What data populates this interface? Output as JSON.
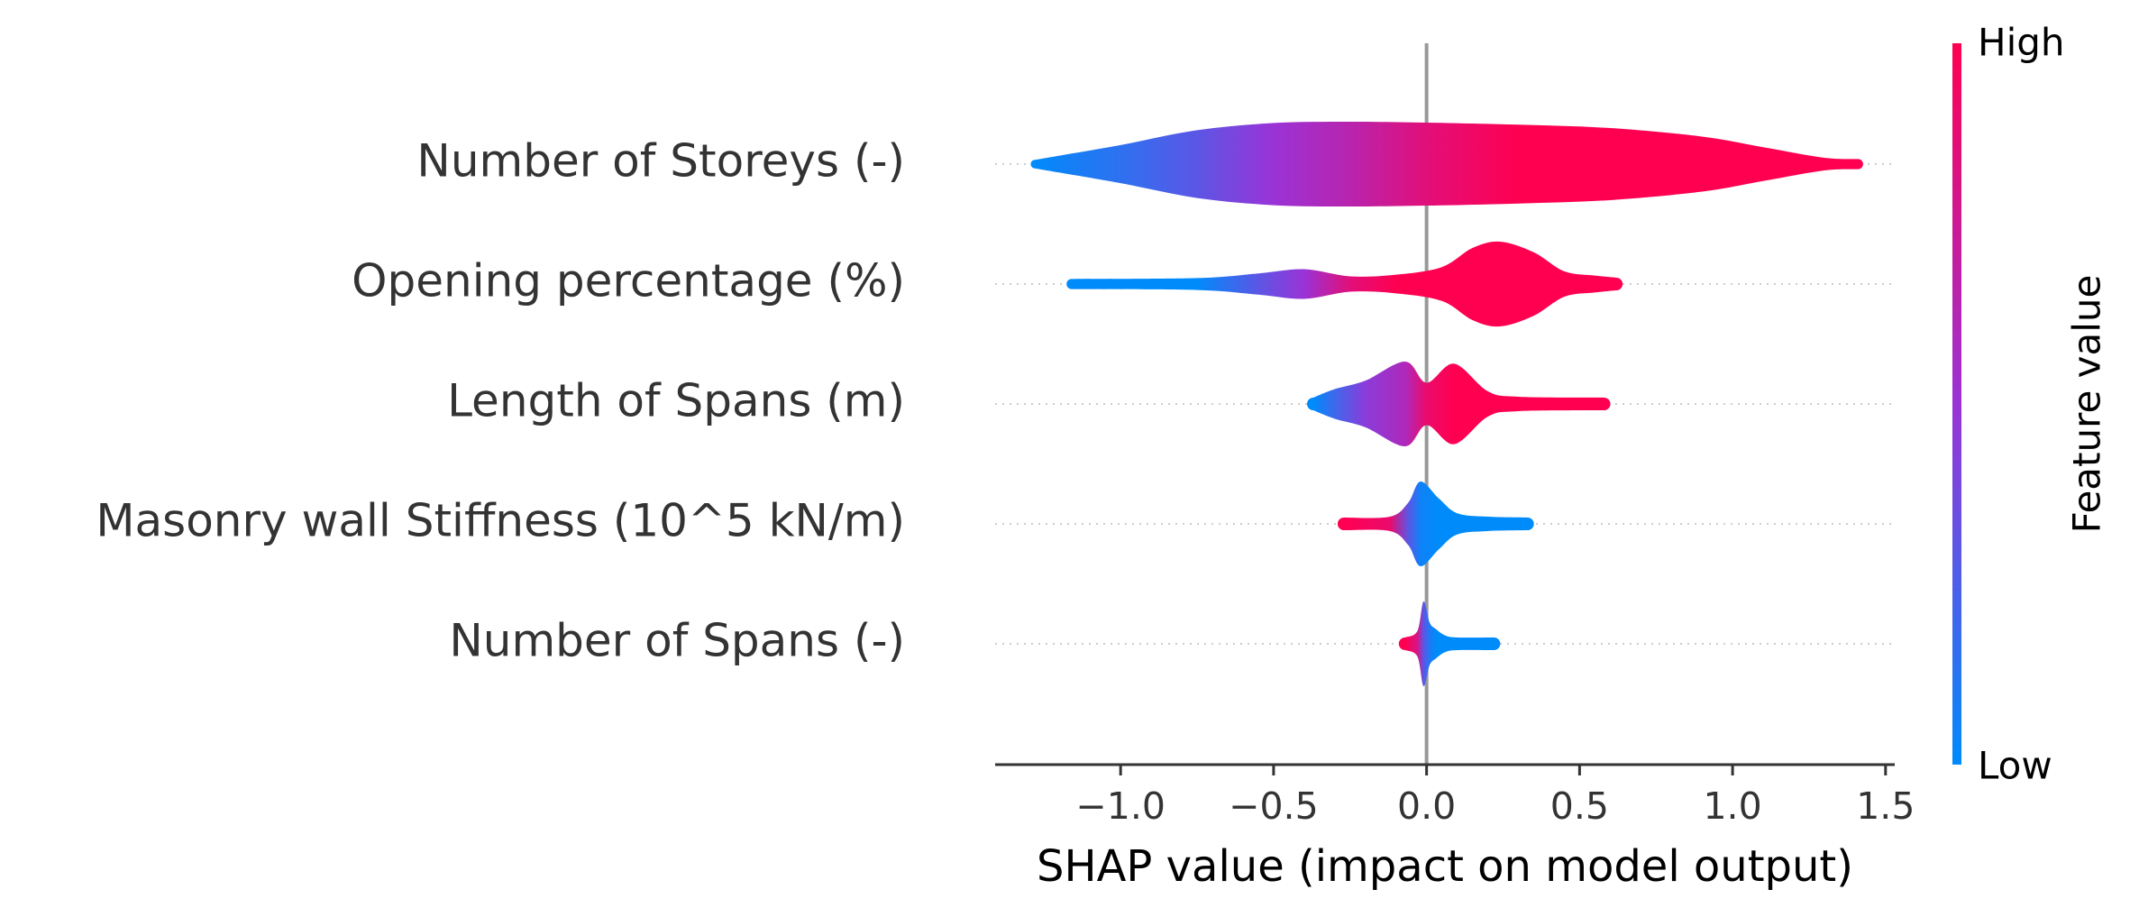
{
  "chart_data": {
    "type": "violin",
    "categories": [
      "Number of Storeys (-)",
      "Opening percentage (%)",
      "Length of Spans (m)",
      "Masonry wall Stiffness (10^5 kN/m)",
      "Number of Spans (-)"
    ],
    "violins": [
      {
        "x": [
          -1.28,
          -1.2,
          -1.0,
          -0.75,
          -0.5,
          -0.25,
          0,
          0.3,
          0.6,
          0.9,
          1.1,
          1.3,
          1.41
        ],
        "density": [
          0.1,
          0.2,
          0.45,
          0.8,
          0.97,
          1.0,
          0.98,
          0.93,
          0.85,
          0.65,
          0.4,
          0.15,
          0.12
        ],
        "feature_value": [
          0,
          0.05,
          0.15,
          0.3,
          0.5,
          0.65,
          0.85,
          1,
          1,
          1,
          1,
          1,
          1
        ]
      },
      {
        "x": [
          -1.16,
          -0.75,
          -0.55,
          -0.4,
          -0.25,
          -0.1,
          0.05,
          0.15,
          0.24,
          0.35,
          0.45,
          0.55,
          0.62
        ],
        "density": [
          0.12,
          0.14,
          0.25,
          0.35,
          0.18,
          0.22,
          0.4,
          0.85,
          1.0,
          0.75,
          0.3,
          0.2,
          0.15
        ],
        "feature_value": [
          0,
          0,
          0.3,
          0.5,
          0.85,
          1,
          1,
          1,
          1,
          1,
          1,
          1,
          1
        ]
      },
      {
        "x": [
          -0.37,
          -0.3,
          -0.2,
          -0.07,
          0.0,
          0.09,
          0.2,
          0.3,
          0.58
        ],
        "density": [
          0.15,
          0.35,
          0.55,
          1.0,
          0.5,
          0.95,
          0.3,
          0.17,
          0.15
        ],
        "feature_value": [
          0,
          0.2,
          0.45,
          0.6,
          0.9,
          1,
          1,
          1,
          1
        ]
      },
      {
        "x": [
          -0.27,
          -0.12,
          -0.06,
          -0.02,
          0.04,
          0.1,
          0.2,
          0.33
        ],
        "density": [
          0.15,
          0.17,
          0.5,
          1.0,
          0.6,
          0.25,
          0.17,
          0.15
        ],
        "feature_value": [
          1,
          0.9,
          0.3,
          0.05,
          0,
          0,
          0,
          0
        ]
      },
      {
        "x": [
          -0.07,
          -0.03,
          -0.01,
          0.01,
          0.03,
          0.06,
          0.1,
          0.22
        ],
        "density": [
          0.15,
          0.3,
          1.0,
          0.5,
          0.35,
          0.2,
          0.15,
          0.15
        ],
        "feature_value": [
          1,
          0.8,
          0.3,
          0.1,
          0,
          0,
          0,
          0
        ]
      }
    ],
    "xlabel": "SHAP value (impact on model output)",
    "xlim": [
      -1.41,
      1.53
    ],
    "xticks": [
      {
        "value": -1,
        "label": "−1.0"
      },
      {
        "value": -0.5,
        "label": "−0.5"
      },
      {
        "value": 0,
        "label": "0.0"
      },
      0.5,
      {
        "value": 1,
        "label": "1.0"
      },
      1.5
    ],
    "zero_line_color": "#999999",
    "colorbar": {
      "label": "Feature value",
      "high": "High",
      "low": "Low",
      "colors": [
        "#008bfb",
        "#9a33d6",
        "#ff0051"
      ]
    }
  }
}
